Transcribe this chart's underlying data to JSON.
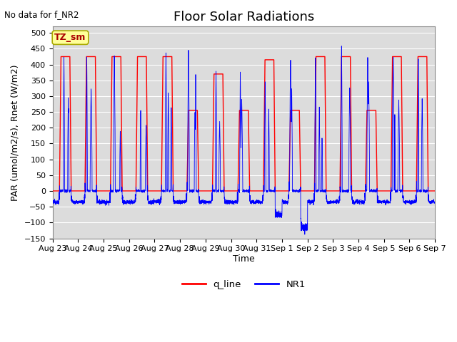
{
  "title": "Floor Solar Radiations",
  "xlabel": "Time",
  "ylabel": "PAR (umol/m2/s), Rnet (W/m2)",
  "top_left_text": "No data for f_NR2",
  "legend_box_text": "TZ_sm",
  "ylim": [
    -150,
    520
  ],
  "yticks": [
    -150,
    -100,
    -50,
    0,
    50,
    100,
    150,
    200,
    250,
    300,
    350,
    400,
    450,
    500
  ],
  "xtick_labels": [
    "Aug 23",
    "Aug 24",
    "Aug 25",
    "Aug 26",
    "Aug 27",
    "Aug 28",
    "Aug 29",
    "Aug 30",
    "Aug 31",
    "Sep 1",
    "Sep 2",
    "Sep 3",
    "Sep 4",
    "Sep 5",
    "Sep 6",
    "Sep 7"
  ],
  "q_line_color": "#FF0000",
  "NR1_color": "#0000FF",
  "background_color": "#DCDCDC",
  "legend_box_facecolor": "#FFFF99",
  "legend_box_edgecolor": "#AAAA00",
  "n_days": 15,
  "points_per_day": 288,
  "title_fontsize": 13,
  "axis_label_fontsize": 9,
  "tick_fontsize": 8,
  "q_peaks": [
    425,
    425,
    425,
    425,
    425,
    255,
    370,
    255,
    415,
    255,
    425,
    425,
    255,
    425,
    425
  ],
  "nr1_peaks": [
    430,
    430,
    430,
    260,
    450,
    450,
    385,
    380,
    355,
    415,
    425,
    475,
    430,
    430,
    430
  ],
  "night_baseline": -35,
  "deep_neg_day": 9,
  "deep_neg_val": -115,
  "deep_neg2_day": 8,
  "deep_neg2_val": -75
}
